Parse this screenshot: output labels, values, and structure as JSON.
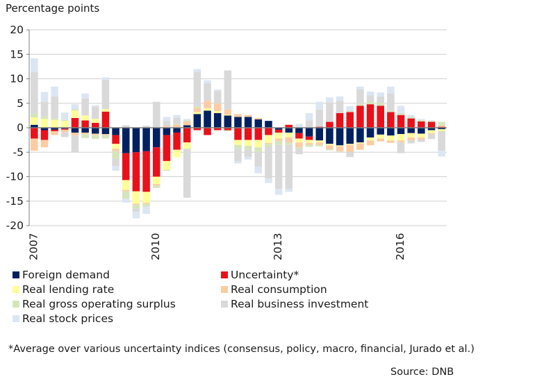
{
  "chart_data": {
    "type": "bar",
    "stacked": true,
    "ylabel": "Percentage points",
    "ylim": [
      -20,
      20
    ],
    "yticks": [
      20,
      15,
      10,
      5,
      0,
      -5,
      -10,
      -15,
      -20
    ],
    "grid": true,
    "x_labels": [
      "2007",
      "2010",
      "2013",
      "2016"
    ],
    "x_label_positions": [
      0,
      12,
      24,
      36
    ],
    "series": [
      {
        "name": "Foreign demand",
        "color": "#002060",
        "values": [
          0.6,
          -0.5,
          -0.4,
          -0.2,
          -1.0,
          -1.0,
          -1.2,
          -1.3,
          -1.5,
          -5.2,
          -5.0,
          -4.8,
          -4.0,
          -1.5,
          -1.0,
          0.5,
          2.8,
          3.5,
          3.0,
          2.5,
          2.2,
          2.2,
          1.7,
          1.4,
          -0.4,
          -1.0,
          -1.1,
          -1.8,
          -2.6,
          -3.3,
          -3.6,
          -3.3,
          -3.0,
          -2.0,
          -1.4,
          -1.6,
          -1.3,
          -1.1,
          -1.2,
          -0.5,
          -0.3
        ]
      },
      {
        "name": "Uncertainty*",
        "color": "#e8111a",
        "values": [
          -2.2,
          -2.0,
          -0.3,
          -0.2,
          2.0,
          1.5,
          1.0,
          3.3,
          -1.8,
          -5.5,
          -8.0,
          -8.3,
          -6.0,
          -5.3,
          -3.5,
          -3.0,
          -0.5,
          -1.5,
          -0.5,
          -0.5,
          -2.5,
          -2.5,
          -2.5,
          -1.5,
          -0.6,
          0.6,
          -1.1,
          -0.7,
          0.2,
          1.2,
          3.0,
          3.2,
          4.5,
          4.8,
          4.5,
          3.2,
          2.6,
          1.9,
          1.3,
          1.2,
          0.2
        ]
      },
      {
        "name": "Real lending rate",
        "color": "#ffff99",
        "values": [
          1.5,
          1.8,
          1.6,
          1.4,
          1.5,
          1.0,
          0.8,
          0.5,
          -1.0,
          -2.0,
          -2.5,
          -2.2,
          -1.5,
          -1.8,
          -1.5,
          -1.3,
          0.4,
          0.5,
          0.4,
          0.2,
          -1.0,
          -1.2,
          -1.5,
          -1.6,
          -1.2,
          -1.0,
          -0.8,
          -0.6,
          -0.4,
          -0.3,
          -0.2,
          -0.2,
          -0.2,
          -0.6,
          -0.8,
          -1.0,
          -1.3,
          -0.9,
          -0.8,
          -0.6,
          -0.4
        ]
      },
      {
        "name": "Real consumption",
        "color": "#fbcca4",
        "values": [
          -2.5,
          -1.5,
          -0.8,
          -0.5,
          -0.6,
          -0.3,
          -0.3,
          -0.2,
          -0.5,
          -0.3,
          -0.2,
          -0.2,
          -0.3,
          0.4,
          0.6,
          0.8,
          0.9,
          1.5,
          1.5,
          1.0,
          0.6,
          0.4,
          0.3,
          -0.2,
          -0.5,
          -1.0,
          -1.0,
          -0.4,
          -0.5,
          -0.8,
          -1.0,
          -1.5,
          -1.3,
          -1.0,
          -0.6,
          -0.5,
          -0.4,
          -0.6,
          -0.4,
          -0.2,
          0.2
        ]
      },
      {
        "name": "Real gross operating surplus",
        "color": "#d6e4bc",
        "values": [
          0.8,
          0.5,
          0.3,
          0.2,
          0.3,
          -0.8,
          -0.8,
          -0.7,
          -1.5,
          -1.5,
          -0.8,
          -0.6,
          -0.5,
          -0.2,
          0.2,
          0.2,
          0.3,
          0.1,
          0.1,
          -0.2,
          -0.8,
          -0.8,
          -1.0,
          -0.6,
          -0.8,
          -0.5,
          -0.4,
          -0.4,
          -0.3,
          -0.2,
          -0.1,
          0.2,
          0.4,
          0.6,
          0.6,
          0.3,
          0.4,
          0.3,
          0.3,
          0.2,
          0.8
        ]
      },
      {
        "name": "Real business investment",
        "color": "#d9d9d9",
        "values": [
          8.5,
          3.0,
          4.5,
          -1.0,
          -3.5,
          3.5,
          2.5,
          6.0,
          -1.5,
          0.5,
          -0.7,
          0.4,
          5.3,
          1.0,
          1.2,
          -10.0,
          7.0,
          3.5,
          2.5,
          8.0,
          -2.5,
          -1.5,
          -3.0,
          -6.5,
          -9.0,
          -9.0,
          -1.0,
          1.5,
          3.5,
          4.0,
          2.5,
          -1.0,
          3.0,
          1.2,
          1.3,
          3.5,
          -2.2,
          -0.6,
          -0.5,
          -1.0,
          -4.0
        ]
      },
      {
        "name": "Real stock prices",
        "color": "#dce6f2",
        "values": [
          2.8,
          2.0,
          2.0,
          1.5,
          1.0,
          1.0,
          0.3,
          0.5,
          -1.0,
          -0.8,
          -1.3,
          -1.5,
          0.0,
          0.8,
          0.6,
          0.3,
          0.6,
          0.6,
          0.3,
          0.0,
          -0.5,
          -0.5,
          -1.3,
          -0.9,
          -1.2,
          -0.6,
          0.8,
          1.5,
          1.6,
          1.0,
          0.9,
          1.0,
          0.5,
          0.8,
          0.8,
          1.4,
          1.5,
          0.4,
          0.2,
          0.1,
          -1.2
        ]
      }
    ]
  },
  "footnote": "*Average over various uncertainty indices (consensus, policy, macro, financial, Jurado et al.)",
  "source": "Source: DNB"
}
